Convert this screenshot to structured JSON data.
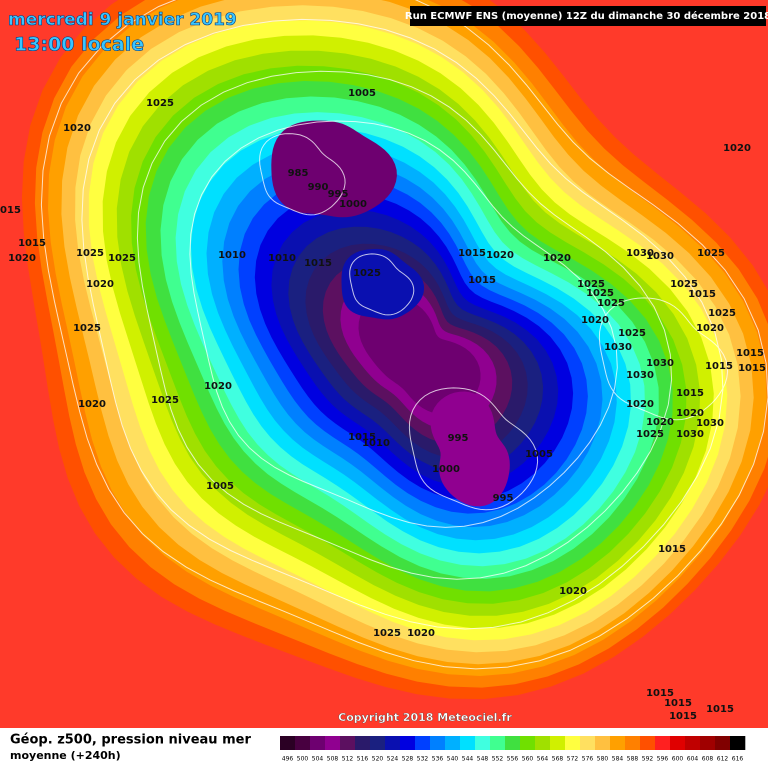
{
  "header": {
    "date": "mercredi 9 janvier 2019",
    "time": "13:00 locale",
    "run": "Run ECMWF ENS (moyenne) 12Z du dimanche 30 décembre 2018"
  },
  "footer": {
    "copyright": "Copyright 2018 Meteociel.fr",
    "legend_title": "Géop. z500, pression niveau mer",
    "legend_subtitle": "moyenne  (+240h)"
  },
  "scale": {
    "values": [
      496,
      500,
      504,
      508,
      512,
      516,
      520,
      524,
      528,
      532,
      536,
      540,
      544,
      548,
      552,
      556,
      560,
      564,
      568,
      572,
      576,
      580,
      584,
      588,
      592,
      596,
      600,
      604,
      608,
      612,
      616
    ],
    "colors": [
      "#2b0024",
      "#480040",
      "#6e0070",
      "#900090",
      "#5c1060",
      "#2a1a6a",
      "#1a2080",
      "#0a10b0",
      "#0000e0",
      "#0040ff",
      "#0080ff",
      "#00b0ff",
      "#00e0ff",
      "#40ffe0",
      "#40ff90",
      "#40e040",
      "#70e000",
      "#a0e000",
      "#d0f000",
      "#ffff40",
      "#ffe060",
      "#ffc040",
      "#ffa000",
      "#ff8000",
      "#ff5000",
      "#ff2020",
      "#e00000",
      "#c00000",
      "#a00000",
      "#800000",
      "#000000"
    ]
  },
  "isobar_labels": [
    1005,
    1025,
    1020,
    1020,
    985,
    990,
    995,
    1000,
    1015,
    1015,
    1020,
    1025,
    1025,
    1010,
    1010,
    1015,
    1025,
    1015,
    1020,
    1020,
    1030,
    1030,
    1025,
    1015,
    1020,
    1025,
    1025,
    1025,
    1025,
    1015,
    1025,
    1020,
    1025,
    1020,
    1025,
    1030,
    1015,
    1015,
    1015,
    1030,
    1030,
    1020,
    1025,
    1020,
    1015,
    1020,
    1020,
    1020,
    1030,
    1025,
    1030,
    1015,
    1010,
    995,
    1005,
    1000,
    1005,
    995,
    1015,
    1020,
    1025,
    1020,
    1015,
    1015,
    1015,
    1015
  ]
}
